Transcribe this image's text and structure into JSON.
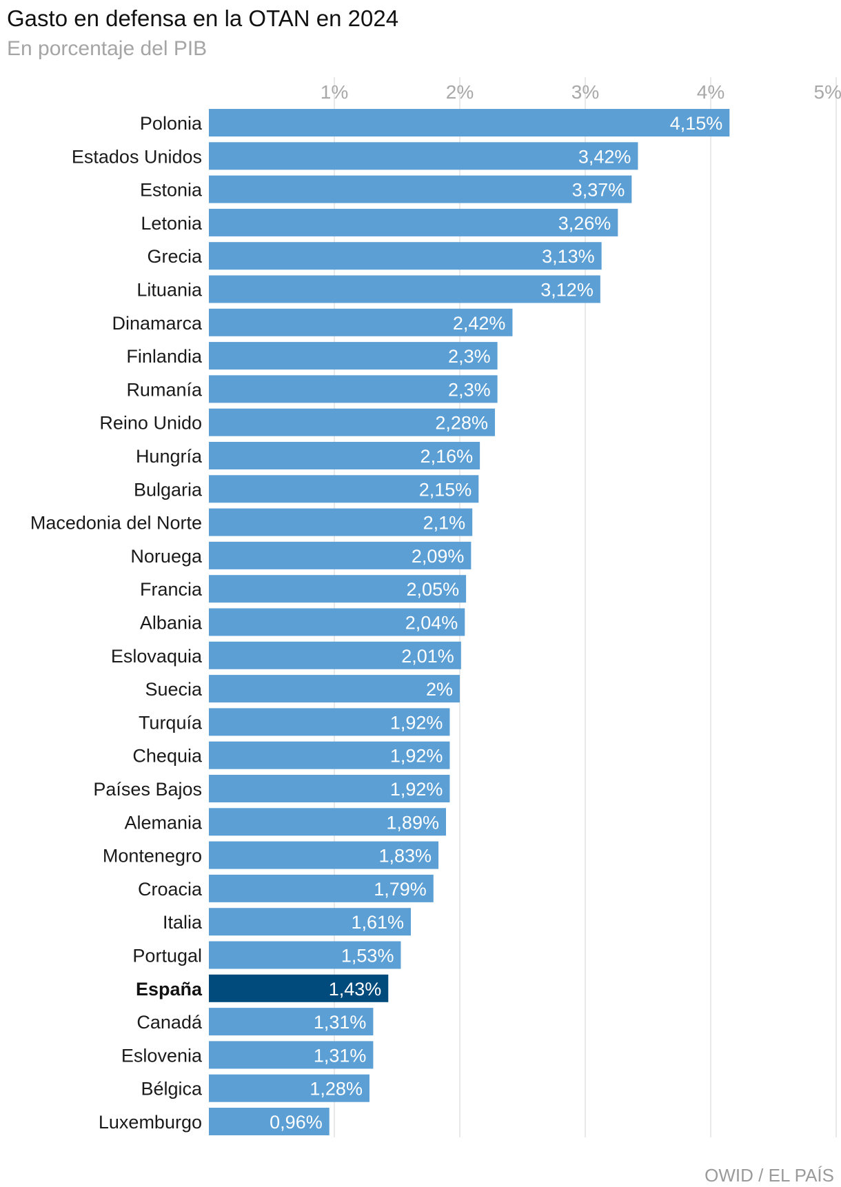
{
  "title": "Gasto en defensa en la OTAN en 2024",
  "subtitle": "En porcentaje del PIB",
  "source": "OWID / EL PAÍS",
  "colors": {
    "bar": "#5b9fd5",
    "highlight": "#004a7c"
  },
  "chart_data": {
    "type": "bar",
    "orientation": "horizontal",
    "title": "Gasto en defensa en la OTAN en 2024",
    "subtitle": "En porcentaje del PIB",
    "xlabel": "",
    "ylabel": "",
    "xlim": [
      0,
      5
    ],
    "ticks": [
      1,
      2,
      3,
      4,
      5
    ],
    "tick_labels": [
      "1%",
      "2%",
      "3%",
      "4%",
      "5%"
    ],
    "highlight": "España",
    "categories": [
      "Polonia",
      "Estados Unidos",
      "Estonia",
      "Letonia",
      "Grecia",
      "Lituania",
      "Dinamarca",
      "Finlandia",
      "Rumanía",
      "Reino Unido",
      "Hungría",
      "Bulgaria",
      "Macedonia del Norte",
      "Noruega",
      "Francia",
      "Albania",
      "Eslovaquia",
      "Suecia",
      "Turquía",
      "Chequia",
      "Países Bajos",
      "Alemania",
      "Montenegro",
      "Croacia",
      "Italia",
      "Portugal",
      "España",
      "Canadá",
      "Eslovenia",
      "Bélgica",
      "Luxemburgo"
    ],
    "values": [
      4.15,
      3.42,
      3.37,
      3.26,
      3.13,
      3.12,
      2.42,
      2.3,
      2.3,
      2.28,
      2.16,
      2.15,
      2.1,
      2.09,
      2.05,
      2.04,
      2.01,
      2.0,
      1.92,
      1.92,
      1.92,
      1.89,
      1.83,
      1.79,
      1.61,
      1.53,
      1.43,
      1.31,
      1.31,
      1.28,
      0.96
    ],
    "value_labels": [
      "4,15%",
      "3,42%",
      "3,37%",
      "3,26%",
      "3,13%",
      "3,12%",
      "2,42%",
      "2,3%",
      "2,3%",
      "2,28%",
      "2,16%",
      "2,15%",
      "2,1%",
      "2,09%",
      "2,05%",
      "2,04%",
      "2,01%",
      "2%",
      "1,92%",
      "1,92%",
      "1,92%",
      "1,89%",
      "1,83%",
      "1,79%",
      "1,61%",
      "1,53%",
      "1,43%",
      "1,31%",
      "1,31%",
      "1,28%",
      "0,96%"
    ]
  }
}
